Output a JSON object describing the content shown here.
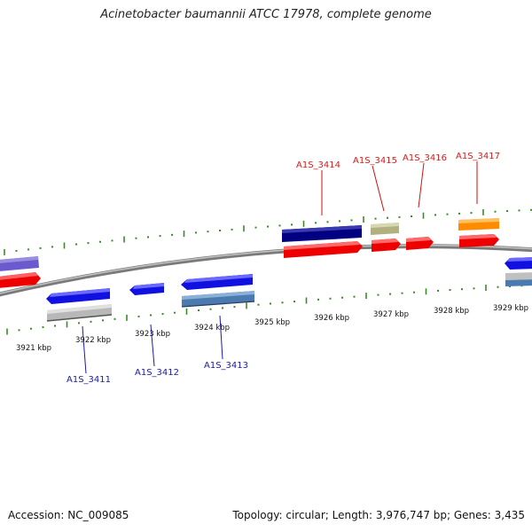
{
  "title": "Acinetobacter baumannii ATCC 17978, complete genome",
  "footer": {
    "accession": "Accession: NC_009085",
    "topology": "Topology: circular; Length: 3,976,747 bp; Genes: 3,435"
  },
  "colors": {
    "backbone": "#8a8a8a",
    "tick_mark": "#3a8a2a",
    "forward_label": "#d81a1a",
    "reverse_label": "#1a1aaa"
  },
  "kbp_labels": [
    "3921 kbp",
    "3922 kbp",
    "3923 kbp",
    "3924 kbp",
    "3925 kbp",
    "3926 kbp",
    "3927 kbp",
    "3928 kbp",
    "3929 kbp"
  ],
  "gene_labels": {
    "forward": [
      "A1S_3414",
      "A1S_3415",
      "A1S_3416",
      "A1S_3417"
    ],
    "reverse": [
      "A1S_3411",
      "A1S_3412",
      "A1S_3413"
    ]
  }
}
